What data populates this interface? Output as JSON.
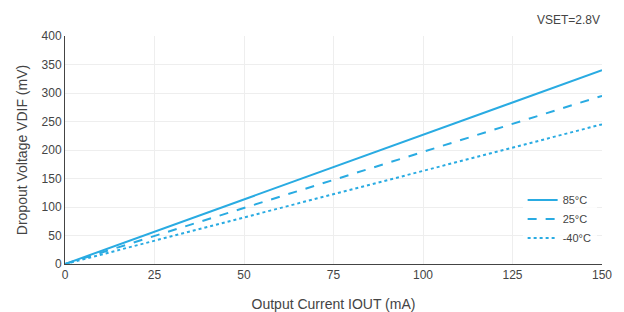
{
  "chart_data": {
    "type": "line",
    "x_label": "Output Current IOUT (mA)",
    "y_label": "Dropout Voltage VDIF (mV)",
    "annotations": [
      "VSET=2.8V"
    ],
    "x": [
      0,
      150
    ],
    "series": [
      {
        "name": "85°C",
        "color": "#29ABE2",
        "line_style": "solid",
        "values": [
          0,
          340
        ]
      },
      {
        "name": "25°C",
        "color": "#29ABE2",
        "line_style": "dashed",
        "values": [
          0,
          295
        ]
      },
      {
        "name": "-40°C",
        "color": "#29ABE2",
        "line_style": "dotted",
        "values": [
          0,
          245
        ]
      }
    ],
    "xlim": [
      0,
      150
    ],
    "ylim": [
      0,
      400
    ],
    "xticks": [
      0,
      25,
      50,
      75,
      100,
      125,
      150
    ],
    "yticks": [
      0,
      50,
      100,
      150,
      200,
      250,
      300,
      350,
      400
    ],
    "grid": true,
    "legend": "lower right"
  }
}
